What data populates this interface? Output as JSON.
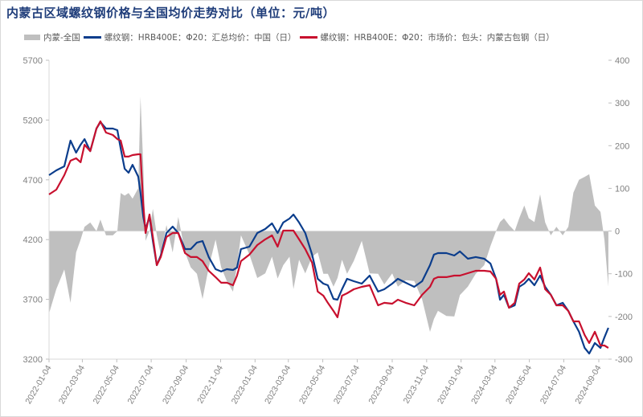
{
  "title": "内蒙古区域螺纹钢价格与全国均价走势对比（单位：元/吨）",
  "colors": {
    "diff": "#bfbfbf",
    "national": "#0b3d8c",
    "baotou": "#c8102e",
    "title": "#1f3d7a",
    "axis_text": "#7f7f7f"
  },
  "chart_data": {
    "type": "line",
    "title": "内蒙古区域螺纹钢价格与全国均价走势对比（单位：元/吨）",
    "legend_position": "top",
    "grid": false,
    "left_axis": {
      "ylim": [
        3200,
        5700
      ],
      "ticks": [
        3200,
        3700,
        4200,
        4700,
        5200,
        5700
      ]
    },
    "right_axis": {
      "ylim": [
        -300,
        400
      ],
      "ticks": [
        -300,
        -200,
        -100,
        0,
        100,
        200,
        300,
        400
      ]
    },
    "x_ticks": [
      "2022-01-04",
      "2022-03-04",
      "2022-05-04",
      "2022-07-04",
      "2022-09-04",
      "2022-11-04",
      "2023-01-04",
      "2023-03-04",
      "2023-05-04",
      "2023-07-04",
      "2023-09-04",
      "2023-11-04",
      "2024-01-04",
      "2024-03-04",
      "2024-05-04",
      "2024-07-04",
      "2024-09-04"
    ],
    "x": [
      "2022-01-04",
      "2022-01-17",
      "2022-01-31",
      "2022-02-11",
      "2022-02-21",
      "2022-03-01",
      "2022-03-08",
      "2022-03-18",
      "2022-03-29",
      "2022-04-05",
      "2022-04-15",
      "2022-04-27",
      "2022-05-05",
      "2022-05-11",
      "2022-05-18",
      "2022-05-25",
      "2022-06-01",
      "2022-06-11",
      "2022-06-15",
      "2022-06-20",
      "2022-06-24",
      "2022-07-01",
      "2022-07-07",
      "2022-07-14",
      "2022-07-21",
      "2022-07-31",
      "2022-08-11",
      "2022-08-21",
      "2022-09-02",
      "2022-09-12",
      "2022-09-23",
      "2022-10-03",
      "2022-10-14",
      "2022-10-26",
      "2022-11-05",
      "2022-11-15",
      "2022-11-26",
      "2022-12-03",
      "2022-12-10",
      "2022-12-25",
      "2023-01-08",
      "2023-01-22",
      "2023-02-03",
      "2023-02-13",
      "2023-02-23",
      "2023-03-06",
      "2023-03-13",
      "2023-03-23",
      "2023-04-03",
      "2023-04-15",
      "2023-04-25",
      "2023-05-05",
      "2023-05-13",
      "2023-05-23",
      "2023-05-30",
      "2023-06-07",
      "2023-06-16",
      "2023-06-28",
      "2023-07-12",
      "2023-07-26",
      "2023-08-10",
      "2023-08-21",
      "2023-09-04",
      "2023-09-14",
      "2023-09-28",
      "2023-10-13",
      "2023-10-27",
      "2023-11-10",
      "2023-11-17",
      "2023-11-24",
      "2023-12-09",
      "2023-12-23",
      "2024-01-02",
      "2024-01-16",
      "2024-01-30",
      "2024-02-14",
      "2024-02-25",
      "2024-03-06",
      "2024-03-13",
      "2024-03-20",
      "2024-03-29",
      "2024-04-08",
      "2024-04-16",
      "2024-04-25",
      "2024-05-03",
      "2024-05-13",
      "2024-05-23",
      "2024-06-01",
      "2024-06-11",
      "2024-06-21",
      "2024-07-02",
      "2024-07-12",
      "2024-07-21",
      "2024-07-31",
      "2024-08-10",
      "2024-08-18",
      "2024-08-28",
      "2024-09-07",
      "2024-09-14",
      "2024-09-21"
    ],
    "series": [
      {
        "name": "内蒙-全国",
        "type": "area",
        "axis": "right",
        "values": [
          -193,
          -136,
          -90,
          -168,
          -50,
          -20,
          10,
          20,
          0,
          27,
          -10,
          -10,
          0,
          89,
          83,
          89,
          76,
          100,
          315,
          150,
          -23,
          0,
          52,
          -10,
          -55,
          14,
          -50,
          33,
          -50,
          -85,
          -100,
          -159,
          -85,
          -20,
          -85,
          -117,
          -142,
          -80,
          -10,
          -55,
          -110,
          -99,
          -60,
          -111,
          -80,
          -60,
          -136,
          -67,
          -99,
          -60,
          -50,
          -100,
          -100,
          -130,
          -110,
          -67,
          -100,
          -70,
          -23,
          -99,
          -100,
          -125,
          -99,
          -130,
          -115,
          -117,
          -160,
          -236,
          -206,
          -187,
          -199,
          -200,
          -150,
          -130,
          -100,
          -80,
          -35,
          0,
          21,
          30,
          14,
          0,
          30,
          60,
          30,
          21,
          86,
          20,
          -10,
          10,
          -10,
          10,
          90,
          120,
          127,
          133,
          60,
          45,
          -20,
          -130
        ]
      },
      {
        "name": "螺纹钢：HRB400E：Φ20：汇总均价：中国（日）",
        "type": "line",
        "axis": "left",
        "values": [
          4739,
          4779,
          4813,
          5028,
          4927,
          4994,
          5041,
          4940,
          5129,
          5183,
          5129,
          5129,
          5115,
          4961,
          4793,
          4759,
          4826,
          4726,
          4591,
          4390,
          4289,
          4390,
          4188,
          3986,
          4067,
          4255,
          4309,
          4255,
          4121,
          4121,
          4175,
          4188,
          4054,
          3953,
          3933,
          3953,
          3946,
          3966,
          4121,
          4141,
          4255,
          4289,
          4336,
          4255,
          4343,
          4376,
          4410,
          4343,
          4255,
          4074,
          3872,
          3832,
          3818,
          3704,
          3697,
          3785,
          3872,
          3852,
          3832,
          3899,
          3765,
          3785,
          3832,
          3872,
          3839,
          3805,
          3852,
          3986,
          4074,
          4087,
          4087,
          4067,
          4101,
          4040,
          4054,
          4040,
          4000,
          3872,
          3697,
          3738,
          3630,
          3650,
          3805,
          3832,
          3872,
          3818,
          3899,
          3805,
          3738,
          3650,
          3671,
          3603,
          3516,
          3429,
          3294,
          3247,
          3335,
          3294,
          3382,
          3462
        ]
      },
      {
        "name": "螺纹钢：HRB400E：Φ20：市场价：包头：内蒙古包钢（日）",
        "type": "line",
        "axis": "left",
        "values": [
          4578,
          4618,
          4739,
          4860,
          4880,
          4847,
          4994,
          4940,
          5129,
          5189,
          5095,
          5075,
          5041,
          5028,
          4894,
          4894,
          4907,
          4914,
          4914,
          4490,
          4255,
          4410,
          4222,
          3986,
          4054,
          4222,
          4255,
          4255,
          4087,
          4054,
          4054,
          4020,
          3939,
          3886,
          3839,
          3839,
          3818,
          3899,
          4020,
          4074,
          4154,
          4202,
          4235,
          4141,
          4275,
          4275,
          4275,
          4202,
          4121,
          4007,
          3765,
          3731,
          3671,
          3603,
          3550,
          3731,
          3751,
          3785,
          3805,
          3818,
          3650,
          3671,
          3664,
          3697,
          3671,
          3650,
          3738,
          3805,
          3872,
          3886,
          3886,
          3899,
          3899,
          3919,
          3939,
          3939,
          3933,
          3872,
          3738,
          3765,
          3630,
          3671,
          3832,
          3866,
          3919,
          3866,
          3966,
          3785,
          3738,
          3650,
          3650,
          3603,
          3516,
          3516,
          3402,
          3335,
          3429,
          3314,
          3314,
          3294
        ]
      }
    ]
  }
}
